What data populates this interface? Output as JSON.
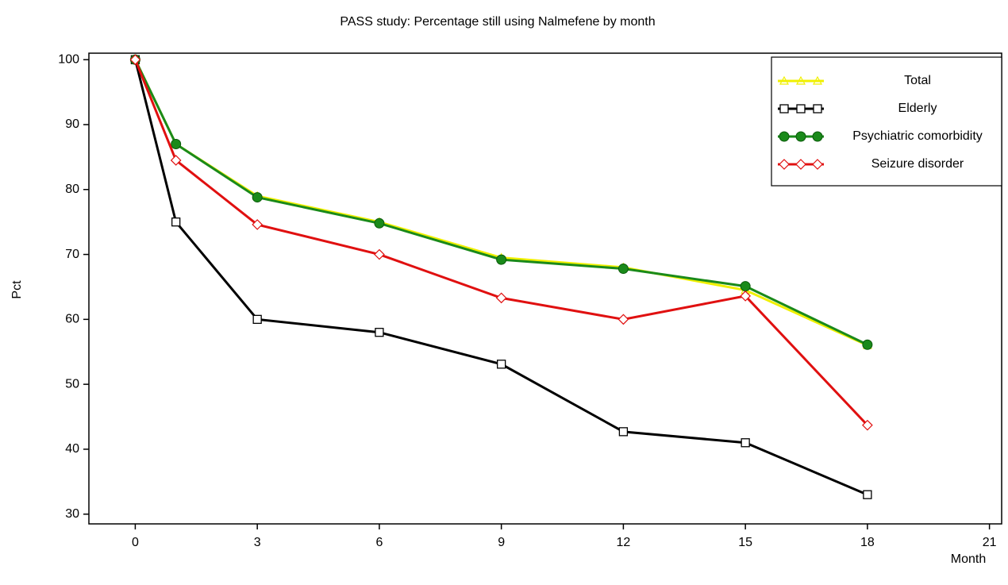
{
  "chart_data": {
    "type": "line",
    "title": "PASS study: Percentage still using Nalmefene by month",
    "x_label": "Month",
    "y_label": "Pct",
    "x": [
      0,
      1,
      3,
      6,
      9,
      12,
      15,
      18
    ],
    "xlim": [
      -1.14,
      21.3
    ],
    "xticks": [
      0,
      3,
      6,
      9,
      12,
      15,
      18,
      21
    ],
    "ylim": [
      28.5,
      101
    ],
    "yticks": [
      30,
      40,
      50,
      60,
      70,
      80,
      90,
      100
    ],
    "legend": "top-right",
    "series": [
      {
        "name": "Total",
        "color": "#f0f000",
        "marker": "triangle",
        "values": [
          100,
          87,
          79,
          75,
          69.5,
          68,
          64.5,
          56
        ]
      },
      {
        "name": "Elderly",
        "color": "#000000",
        "marker": "square",
        "values": [
          100,
          75,
          60,
          58,
          53.1,
          42.7,
          41,
          33
        ]
      },
      {
        "name": "Psychiatric comorbidity",
        "color": "#1a8a1a",
        "marker": "circle",
        "values": [
          100,
          87,
          78.8,
          74.8,
          69.2,
          67.8,
          65.1,
          56.1
        ]
      },
      {
        "name": "Seizure disorder",
        "color": "#e01010",
        "marker": "diamond",
        "values": [
          100,
          84.5,
          74.6,
          70,
          63.3,
          60,
          63.6,
          43.7
        ]
      }
    ]
  }
}
